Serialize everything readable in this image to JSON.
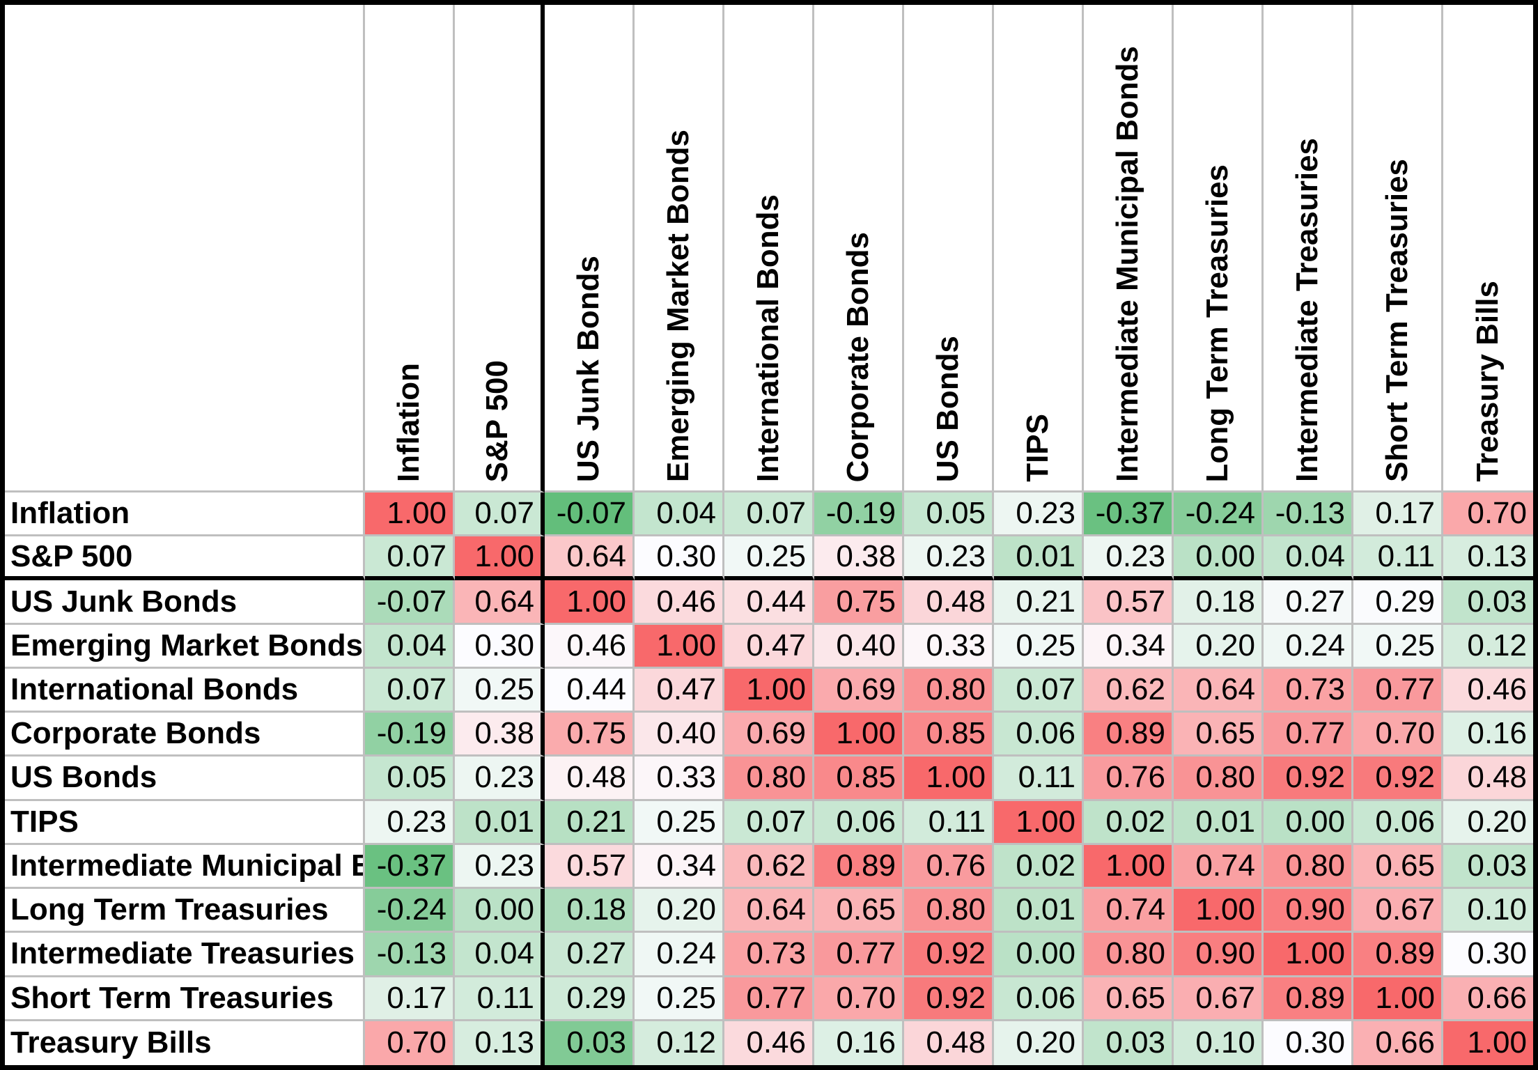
{
  "chart_data": {
    "type": "heatmap",
    "title": "",
    "value_format": "0.00",
    "categories": [
      "Inflation",
      "S&P 500",
      "US Junk Bonds",
      "Emerging Market Bonds",
      "International Bonds",
      "Corporate Bonds",
      "US Bonds",
      "TIPS",
      "Intermediate Municipal Bonds",
      "Long Term Treasuries",
      "Intermediate Treasuries",
      "Short Term Treasuries",
      "Treasury Bills"
    ],
    "rows": [
      "Inflation",
      "S&P 500",
      "US Junk Bonds",
      "Emerging Market Bonds",
      "International Bonds",
      "Corporate Bonds",
      "US Bonds",
      "TIPS",
      "Intermediate Municipal Bonds",
      "Long Term Treasuries",
      "Intermediate Treasuries",
      "Short Term Treasuries",
      "Treasury Bills"
    ],
    "matrix": [
      [
        1.0,
        0.07,
        -0.07,
        0.04,
        0.07,
        -0.19,
        0.05,
        0.23,
        -0.37,
        -0.24,
        -0.13,
        0.17,
        0.7
      ],
      [
        0.07,
        1.0,
        0.64,
        0.3,
        0.25,
        0.38,
        0.23,
        0.01,
        0.23,
        0.0,
        0.04,
        0.11,
        0.13
      ],
      [
        -0.07,
        0.64,
        1.0,
        0.46,
        0.44,
        0.75,
        0.48,
        0.21,
        0.57,
        0.18,
        0.27,
        0.29,
        0.03
      ],
      [
        0.04,
        0.3,
        0.46,
        1.0,
        0.47,
        0.4,
        0.33,
        0.25,
        0.34,
        0.2,
        0.24,
        0.25,
        0.12
      ],
      [
        0.07,
        0.25,
        0.44,
        0.47,
        1.0,
        0.69,
        0.8,
        0.07,
        0.62,
        0.64,
        0.73,
        0.77,
        0.46
      ],
      [
        -0.19,
        0.38,
        0.75,
        0.4,
        0.69,
        1.0,
        0.85,
        0.06,
        0.89,
        0.65,
        0.77,
        0.7,
        0.16
      ],
      [
        0.05,
        0.23,
        0.48,
        0.33,
        0.8,
        0.85,
        1.0,
        0.11,
        0.76,
        0.8,
        0.92,
        0.92,
        0.48
      ],
      [
        0.23,
        0.01,
        0.21,
        0.25,
        0.07,
        0.06,
        0.11,
        1.0,
        0.02,
        0.01,
        0.0,
        0.06,
        0.2
      ],
      [
        -0.37,
        0.23,
        0.57,
        0.34,
        0.62,
        0.89,
        0.76,
        0.02,
        1.0,
        0.74,
        0.8,
        0.65,
        0.03
      ],
      [
        -0.24,
        0.0,
        0.18,
        0.2,
        0.64,
        0.65,
        0.8,
        0.01,
        0.74,
        1.0,
        0.9,
        0.67,
        0.1
      ],
      [
        -0.13,
        0.04,
        0.27,
        0.24,
        0.73,
        0.77,
        0.92,
        0.0,
        0.8,
        0.9,
        1.0,
        0.89,
        0.3
      ],
      [
        0.17,
        0.11,
        0.29,
        0.25,
        0.77,
        0.7,
        0.92,
        0.06,
        0.65,
        0.67,
        0.89,
        1.0,
        0.66
      ],
      [
        0.7,
        0.13,
        0.03,
        0.12,
        0.46,
        0.16,
        0.48,
        0.2,
        0.03,
        0.1,
        0.3,
        0.66,
        1.0
      ]
    ],
    "color_scale": {
      "green_low": "#63BE7B",
      "white_mid": "#FCFCFF",
      "red_high": "#F8696B",
      "default_anchors": [
        -0.4,
        0.3,
        1.0
      ],
      "column_anchor_overrides": {
        "2": [
          -0.07,
          0.44,
          1.0
        ]
      }
    },
    "gridline_color": "#BFBFBF",
    "separator_color": "#000000",
    "legend": "none"
  }
}
